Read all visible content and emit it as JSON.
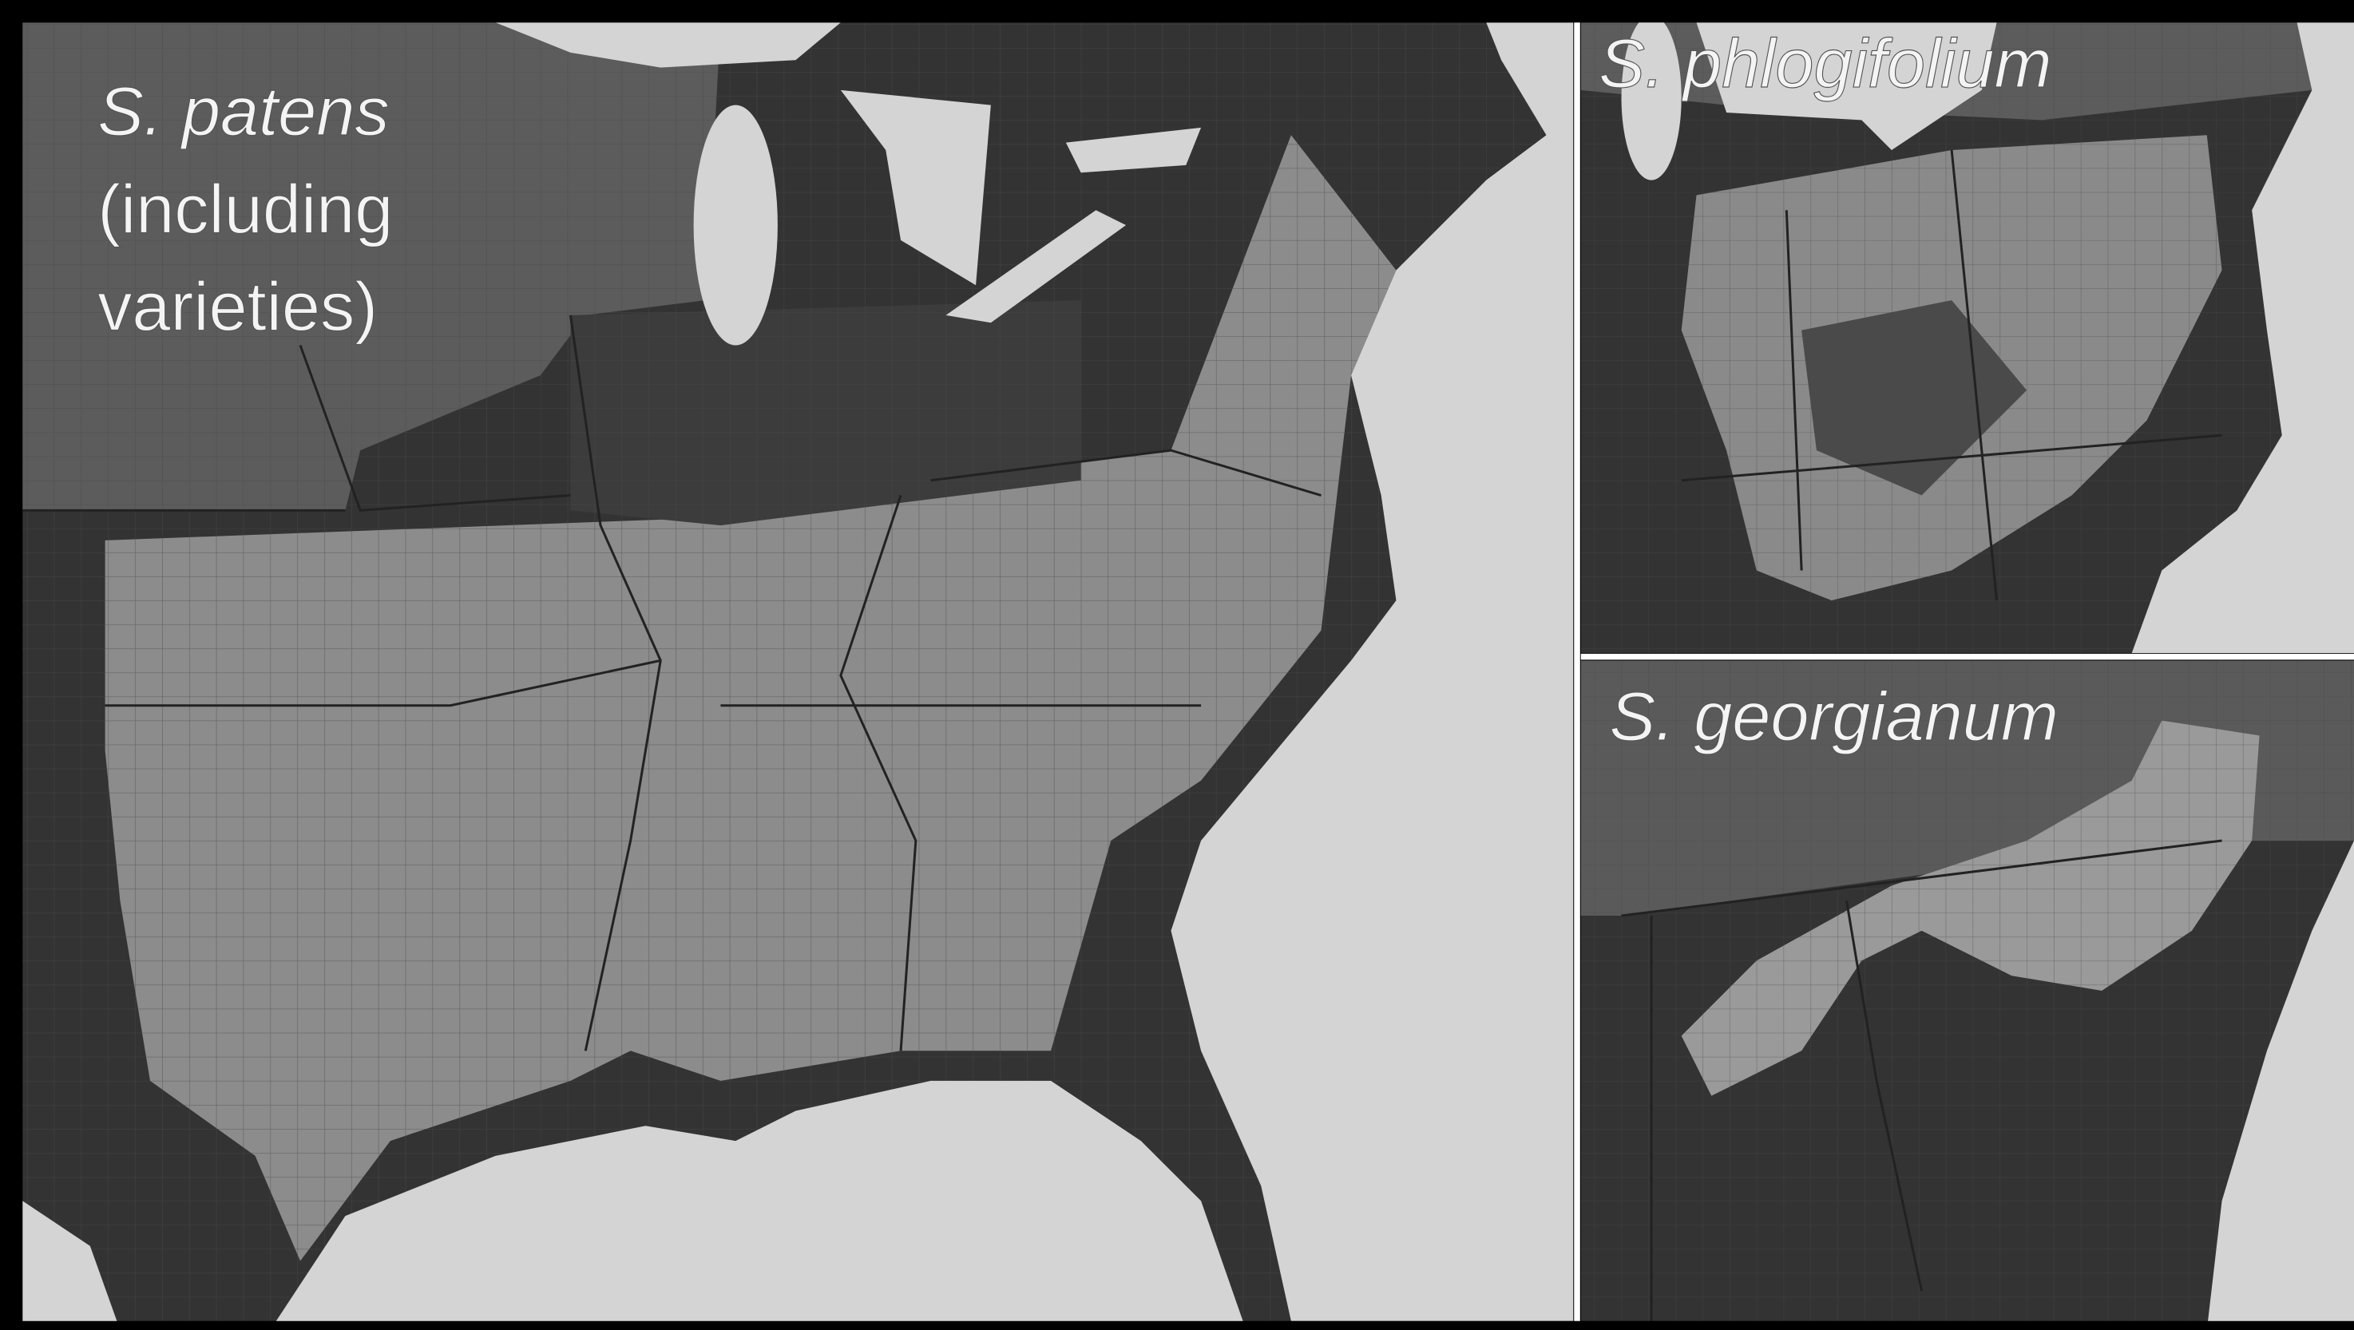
{
  "panels": [
    {
      "title": "S. patens",
      "note_lines": [
        "(including",
        "varieties)"
      ]
    },
    {
      "title": "S. phlogifolium"
    },
    {
      "title": "S. georgianum"
    }
  ]
}
